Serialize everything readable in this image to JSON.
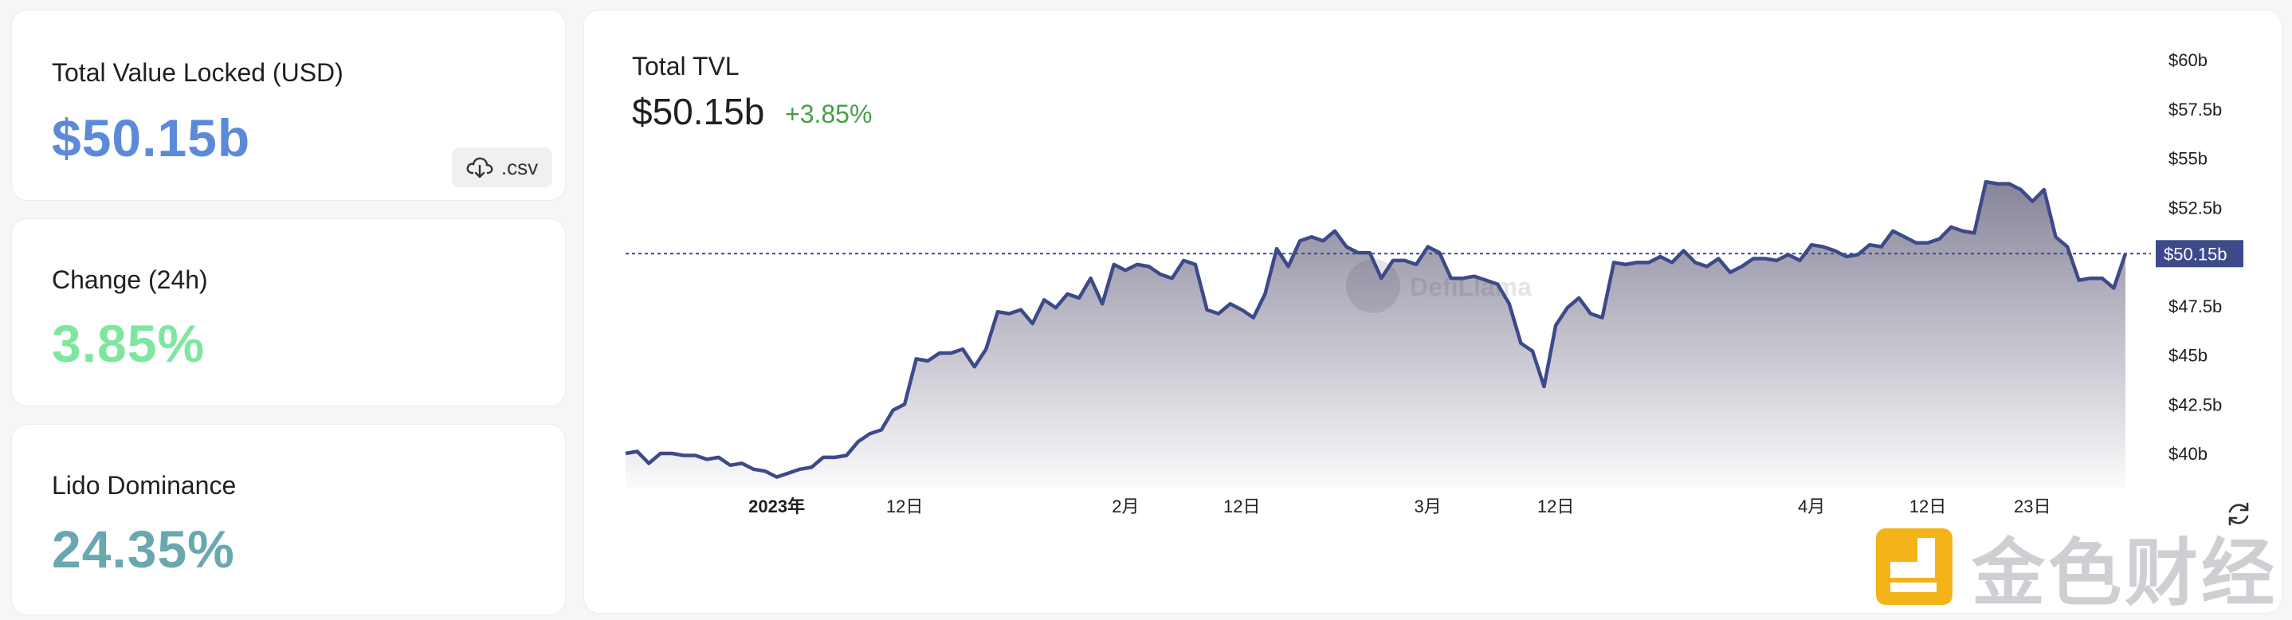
{
  "stats": {
    "tvl": {
      "label": "Total Value Locked (USD)",
      "value": "$50.15b",
      "color": "#5b8ad9"
    },
    "change": {
      "label": "Change (24h)",
      "value": "3.85%",
      "color": "#7fe6a0"
    },
    "dominance": {
      "label": "Lido Dominance",
      "value": "24.35%",
      "color": "#6aa8b0"
    },
    "csv_label": ".csv",
    "csv_icon": "cloud-download-icon"
  },
  "chart_header": {
    "title": "Total TVL",
    "value": "$50.15b",
    "change": "+3.85%",
    "change_color": "#45a047"
  },
  "watermark": "DefiLlama",
  "chart_data": {
    "type": "area",
    "title": "",
    "line_color": "#3d4a8a",
    "y_unit": "billion USD",
    "ylim": [
      39,
      61
    ],
    "y_ticks": [
      "$40b",
      "$42.5b",
      "$45b",
      "$47.5b",
      "$50b",
      "$52.5b",
      "$55b",
      "$57.5b",
      "$60b"
    ],
    "y_tick_values": [
      40,
      42.5,
      45,
      47.5,
      50,
      52.5,
      55,
      57.5,
      60
    ],
    "x_ticks": [
      "2023年",
      "12日",
      "2月",
      "12日",
      "3月",
      "12日",
      "4月",
      "12日",
      "23日"
    ],
    "x_tick_index": [
      13,
      24,
      43,
      53,
      69,
      80,
      102,
      112,
      121
    ],
    "current_value": 50.15,
    "current_label": "$50.15b",
    "grid": false,
    "values": [
      40,
      40.1,
      39.5,
      40.0,
      40.0,
      39.9,
      39.9,
      39.7,
      39.8,
      39.4,
      39.5,
      39.2,
      39.1,
      38.8,
      39.0,
      39.2,
      39.3,
      39.8,
      39.8,
      39.9,
      40.6,
      41.0,
      41.2,
      42.2,
      42.5,
      44.8,
      44.7,
      45.1,
      45.1,
      45.3,
      44.4,
      45.3,
      47.2,
      47.1,
      47.3,
      46.6,
      47.8,
      47.4,
      48.1,
      47.9,
      48.9,
      47.6,
      49.6,
      49.3,
      49.6,
      49.5,
      49.1,
      48.9,
      49.8,
      49.6,
      47.3,
      47.1,
      47.6,
      47.3,
      46.9,
      48.1,
      50.4,
      49.5,
      50.8,
      51.0,
      50.8,
      51.3,
      50.5,
      50.2,
      50.2,
      48.9,
      49.8,
      49.8,
      49.6,
      50.5,
      50.2,
      48.9,
      48.9,
      49.0,
      48.8,
      48.6,
      47.6,
      45.6,
      45.2,
      43.4,
      46.5,
      47.4,
      47.9,
      47.1,
      46.9,
      49.7,
      49.6,
      49.7,
      49.7,
      50.0,
      49.7,
      50.3,
      49.7,
      49.5,
      49.9,
      49.2,
      49.5,
      49.9,
      49.9,
      49.8,
      50.1,
      49.8,
      50.6,
      50.5,
      50.3,
      50.0,
      50.1,
      50.6,
      50.5,
      51.3,
      51.0,
      50.7,
      50.7,
      50.9,
      51.5,
      51.3,
      51.2,
      53.8,
      53.7,
      53.7,
      53.4,
      52.8,
      53.4,
      51.0,
      50.5,
      48.8,
      48.9,
      48.9,
      48.4,
      50.15
    ]
  }
}
